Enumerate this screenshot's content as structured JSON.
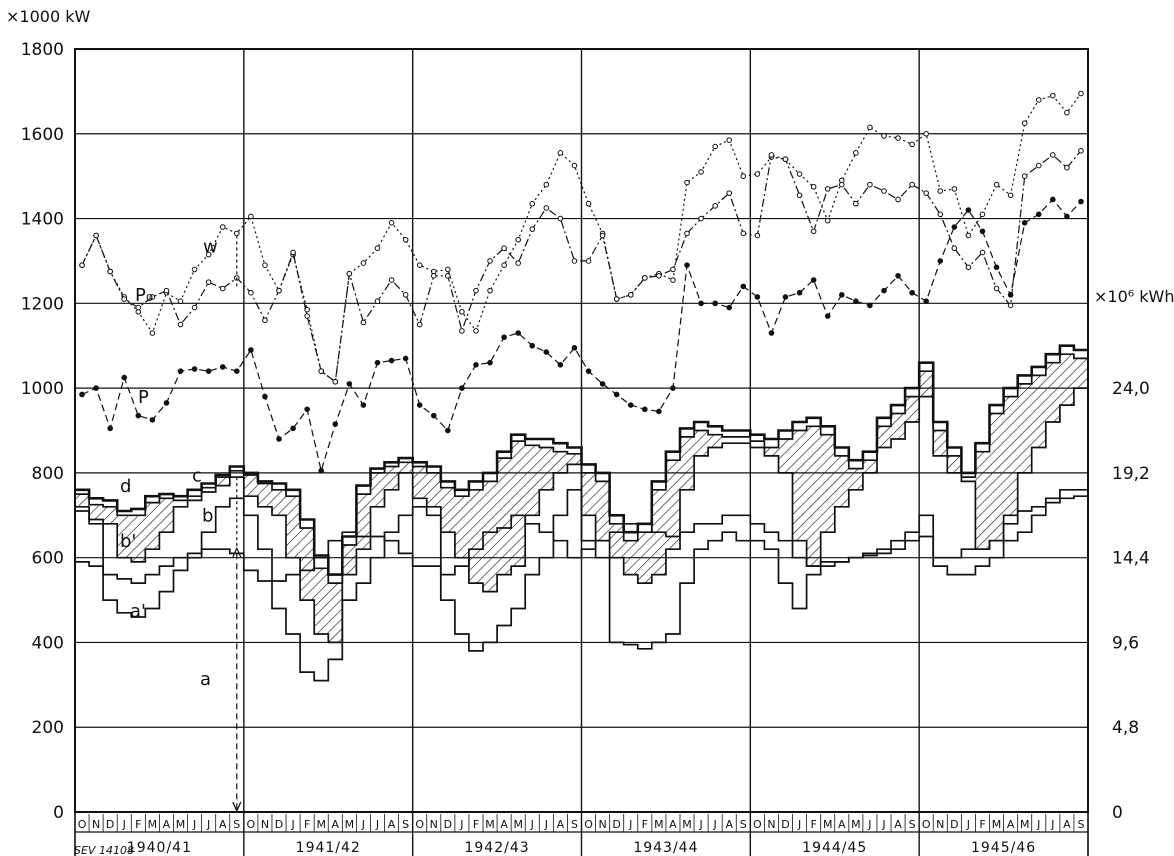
{
  "chart_data": {
    "type": "line",
    "y_left_unit": "×1000 kW",
    "y_right_unit": "×10⁶ kWh",
    "ylim": [
      0,
      1800
    ],
    "y_ticks": [
      0,
      200,
      400,
      600,
      800,
      1000,
      1200,
      1400,
      1600,
      1800
    ],
    "y_right_ticks": [
      "0",
      "4,8",
      "9,6",
      "14,4",
      "19,2",
      "24,0"
    ],
    "grid": true,
    "months": [
      "O",
      "N",
      "D",
      "J",
      "F",
      "M",
      "A",
      "M",
      "J",
      "J",
      "A",
      "S"
    ],
    "years": [
      "1940/41",
      "1941/42",
      "1942/43",
      "1943/44",
      "1944/45",
      "1945/46"
    ],
    "footnote": "SEV 14108",
    "curve_labels": [
      "P₀",
      "P",
      "w",
      "d",
      "c",
      "b",
      "b'",
      "a'",
      "a"
    ],
    "series": [
      {
        "name": "P₀",
        "style": "dotted-open-circles",
        "values": [
          1290,
          1360,
          1275,
          1215,
          1180,
          1130,
          1225,
          1205,
          1280,
          1315,
          1380,
          1365,
          1405,
          1290,
          1230,
          1315,
          1185,
          1040,
          1015,
          1270,
          1295,
          1330,
          1390,
          1350,
          1290,
          1275,
          1280,
          1180,
          1135,
          1230,
          1290,
          1350,
          1435,
          1480,
          1555,
          1525,
          1435,
          1365,
          1210,
          1220,
          1260,
          1270,
          1255,
          1485,
          1510,
          1570,
          1585,
          1500,
          1505,
          1545,
          1540,
          1505,
          1475,
          1395,
          1490,
          1555,
          1615,
          1595,
          1590,
          1575,
          1600,
          1465,
          1470,
          1360,
          1410,
          1480,
          1455,
          1625,
          1680,
          1690,
          1650,
          1695
        ]
      },
      {
        "name": "w",
        "style": "dash-dot-open-circles",
        "values": [
          1290,
          1360,
          1275,
          1210,
          1190,
          1215,
          1230,
          1150,
          1190,
          1250,
          1235,
          1260,
          1225,
          1160,
          1230,
          1320,
          1170,
          1040,
          1015,
          1270,
          1155,
          1205,
          1255,
          1220,
          1150,
          1265,
          1265,
          1135,
          1230,
          1300,
          1330,
          1295,
          1375,
          1425,
          1400,
          1300,
          1300,
          1360,
          1210,
          1220,
          1260,
          1265,
          1280,
          1365,
          1400,
          1430,
          1460,
          1365,
          1360,
          1550,
          1540,
          1455,
          1370,
          1470,
          1480,
          1435,
          1480,
          1465,
          1445,
          1480,
          1460,
          1410,
          1330,
          1285,
          1320,
          1235,
          1195,
          1500,
          1525,
          1550,
          1520,
          1560
        ]
      },
      {
        "name": "P",
        "style": "dashed-filled-dots",
        "values": [
          985,
          1000,
          905,
          1025,
          935,
          925,
          965,
          1040,
          1045,
          1040,
          1050,
          1040,
          1090,
          980,
          880,
          905,
          950,
          805,
          915,
          1010,
          960,
          1060,
          1065,
          1070,
          960,
          935,
          900,
          1000,
          1055,
          1060,
          1120,
          1130,
          1100,
          1085,
          1055,
          1095,
          1040,
          1010,
          985,
          960,
          950,
          945,
          1000,
          1290,
          1200,
          1200,
          1190,
          1240,
          1215,
          1130,
          1215,
          1225,
          1255,
          1170,
          1220,
          1205,
          1195,
          1230,
          1265,
          1225,
          1205,
          1300,
          1380,
          1420,
          1370,
          1285,
          1220,
          1390,
          1410,
          1445,
          1405,
          1440
        ]
      },
      {
        "name": "d",
        "style": "step-thick",
        "values": [
          760,
          740,
          735,
          710,
          715,
          745,
          750,
          745,
          760,
          775,
          795,
          815,
          800,
          780,
          775,
          760,
          690,
          605,
          560,
          650,
          770,
          810,
          825,
          835,
          825,
          815,
          780,
          760,
          780,
          800,
          850,
          890,
          880,
          880,
          870,
          860,
          820,
          800,
          700,
          660,
          680,
          780,
          850,
          905,
          920,
          910,
          900,
          900,
          890,
          880,
          900,
          920,
          930,
          910,
          860,
          830,
          850,
          930,
          960,
          1000,
          1060,
          920,
          860,
          800,
          870,
          960,
          1000,
          1030,
          1050,
          1080,
          1100,
          1090
        ]
      },
      {
        "name": "c",
        "style": "step",
        "values": [
          750,
          725,
          720,
          700,
          700,
          730,
          740,
          735,
          745,
          765,
          790,
          805,
          795,
          775,
          760,
          745,
          670,
          575,
          540,
          630,
          750,
          800,
          815,
          825,
          815,
          800,
          765,
          745,
          760,
          780,
          835,
          875,
          865,
          860,
          850,
          845,
          800,
          780,
          680,
          640,
          660,
          760,
          830,
          885,
          900,
          890,
          885,
          885,
          875,
          860,
          880,
          900,
          910,
          890,
          840,
          810,
          830,
          910,
          940,
          980,
          1040,
          900,
          840,
          790,
          850,
          940,
          980,
          1010,
          1030,
          1060,
          1080,
          1070
        ]
      },
      {
        "name": "b",
        "style": "step",
        "values": [
          720,
          690,
          680,
          600,
          590,
          620,
          660,
          720,
          735,
          755,
          770,
          790,
          745,
          720,
          700,
          600,
          500,
          420,
          400,
          560,
          620,
          720,
          760,
          800,
          740,
          720,
          660,
          600,
          540,
          520,
          560,
          580,
          700,
          760,
          800,
          820,
          700,
          640,
          600,
          560,
          540,
          560,
          620,
          760,
          840,
          860,
          870,
          870,
          860,
          840,
          800,
          640,
          580,
          660,
          720,
          760,
          800,
          860,
          880,
          920,
          980,
          840,
          800,
          780,
          620,
          640,
          700,
          800,
          860,
          920,
          960,
          1000
        ]
      },
      {
        "name": "a'",
        "style": "step",
        "values": [
          710,
          680,
          500,
          470,
          460,
          480,
          520,
          570,
          600,
          660,
          720,
          740,
          700,
          620,
          480,
          420,
          330,
          310,
          360,
          500,
          540,
          600,
          660,
          700,
          720,
          700,
          500,
          420,
          380,
          400,
          440,
          480,
          560,
          600,
          700,
          760,
          640,
          600,
          400,
          395,
          385,
          400,
          420,
          540,
          620,
          640,
          660,
          640,
          640,
          620,
          540,
          480,
          560,
          580,
          590,
          600,
          610,
          620,
          640,
          660,
          700,
          580,
          560,
          560,
          580,
          600,
          640,
          660,
          700,
          740,
          760,
          760
        ]
      },
      {
        "name": "a",
        "style": "step",
        "values": [
          590,
          580,
          560,
          550,
          540,
          560,
          580,
          600,
          610,
          620,
          620,
          610,
          570,
          545,
          545,
          560,
          570,
          600,
          640,
          660,
          650,
          650,
          640,
          610,
          580,
          580,
          560,
          580,
          620,
          660,
          670,
          700,
          680,
          660,
          640,
          600,
          620,
          640,
          660,
          680,
          680,
          660,
          650,
          660,
          680,
          680,
          700,
          700,
          680,
          660,
          640,
          600,
          580,
          590,
          590,
          600,
          605,
          610,
          620,
          640,
          650,
          600,
          600,
          620,
          620,
          640,
          680,
          710,
          720,
          730,
          740,
          745
        ]
      }
    ]
  }
}
